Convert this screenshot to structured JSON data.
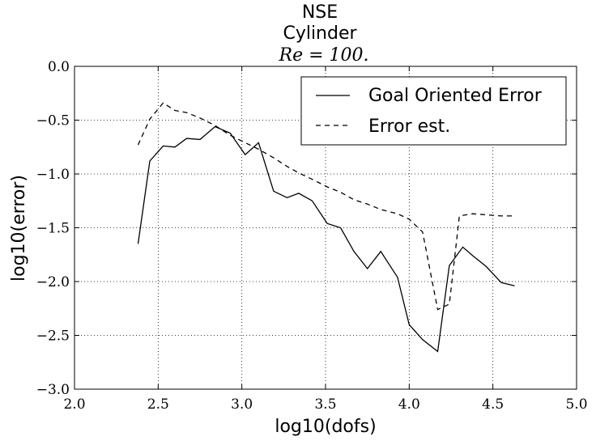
{
  "chart_data": {
    "type": "line",
    "title_lines": [
      "NSE",
      "Cylinder",
      "Re = 100."
    ],
    "xlabel": "log10(dofs)",
    "ylabel": "log10(error)",
    "xlim": [
      2.0,
      5.0
    ],
    "ylim": [
      -3.0,
      0.0
    ],
    "xticks": [
      2.0,
      2.5,
      3.0,
      3.5,
      4.0,
      4.5,
      5.0
    ],
    "yticks": [
      0.0,
      -0.5,
      -1.0,
      -1.5,
      -2.0,
      -2.5,
      -3.0
    ],
    "xtick_labels": [
      "2.0",
      "2.5",
      "3.0",
      "3.5",
      "4.0",
      "4.5",
      "5.0"
    ],
    "ytick_labels": [
      "0.0",
      "−0.5",
      "−1.0",
      "−1.5",
      "−2.0",
      "−2.5",
      "−3.0"
    ],
    "grid": true,
    "legend_position": "top-right",
    "series": [
      {
        "name": "Goal Oriented Error",
        "style": "solid",
        "color": "#000000",
        "x": [
          2.38,
          2.45,
          2.53,
          2.6,
          2.67,
          2.75,
          2.84,
          2.93,
          3.02,
          3.1,
          3.19,
          3.27,
          3.34,
          3.42,
          3.51,
          3.59,
          3.67,
          3.75,
          3.83,
          3.93,
          4.0,
          4.08,
          4.17,
          4.24,
          4.32,
          4.38,
          4.46,
          4.55,
          4.63
        ],
        "y": [
          -1.65,
          -0.88,
          -0.74,
          -0.75,
          -0.67,
          -0.68,
          -0.56,
          -0.62,
          -0.82,
          -0.71,
          -1.16,
          -1.22,
          -1.18,
          -1.25,
          -1.46,
          -1.5,
          -1.72,
          -1.88,
          -1.72,
          -1.96,
          -2.4,
          -2.54,
          -2.65,
          -1.85,
          -1.68,
          -1.76,
          -1.86,
          -2.01,
          -2.04
        ]
      },
      {
        "name": "Error est.",
        "style": "dashed",
        "color": "#000000",
        "x": [
          2.38,
          2.45,
          2.53,
          2.6,
          2.67,
          2.75,
          2.84,
          2.93,
          3.02,
          3.1,
          3.19,
          3.27,
          3.34,
          3.42,
          3.51,
          3.59,
          3.67,
          3.75,
          3.83,
          3.93,
          4.0,
          4.08,
          4.17,
          4.24,
          4.3,
          4.38,
          4.46,
          4.55,
          4.63
        ],
        "y": [
          -0.73,
          -0.49,
          -0.34,
          -0.41,
          -0.43,
          -0.48,
          -0.55,
          -0.64,
          -0.71,
          -0.77,
          -0.85,
          -0.93,
          -0.99,
          -1.05,
          -1.12,
          -1.17,
          -1.24,
          -1.28,
          -1.33,
          -1.37,
          -1.42,
          -1.54,
          -2.26,
          -2.21,
          -1.39,
          -1.37,
          -1.38,
          -1.39,
          -1.39
        ]
      }
    ]
  }
}
